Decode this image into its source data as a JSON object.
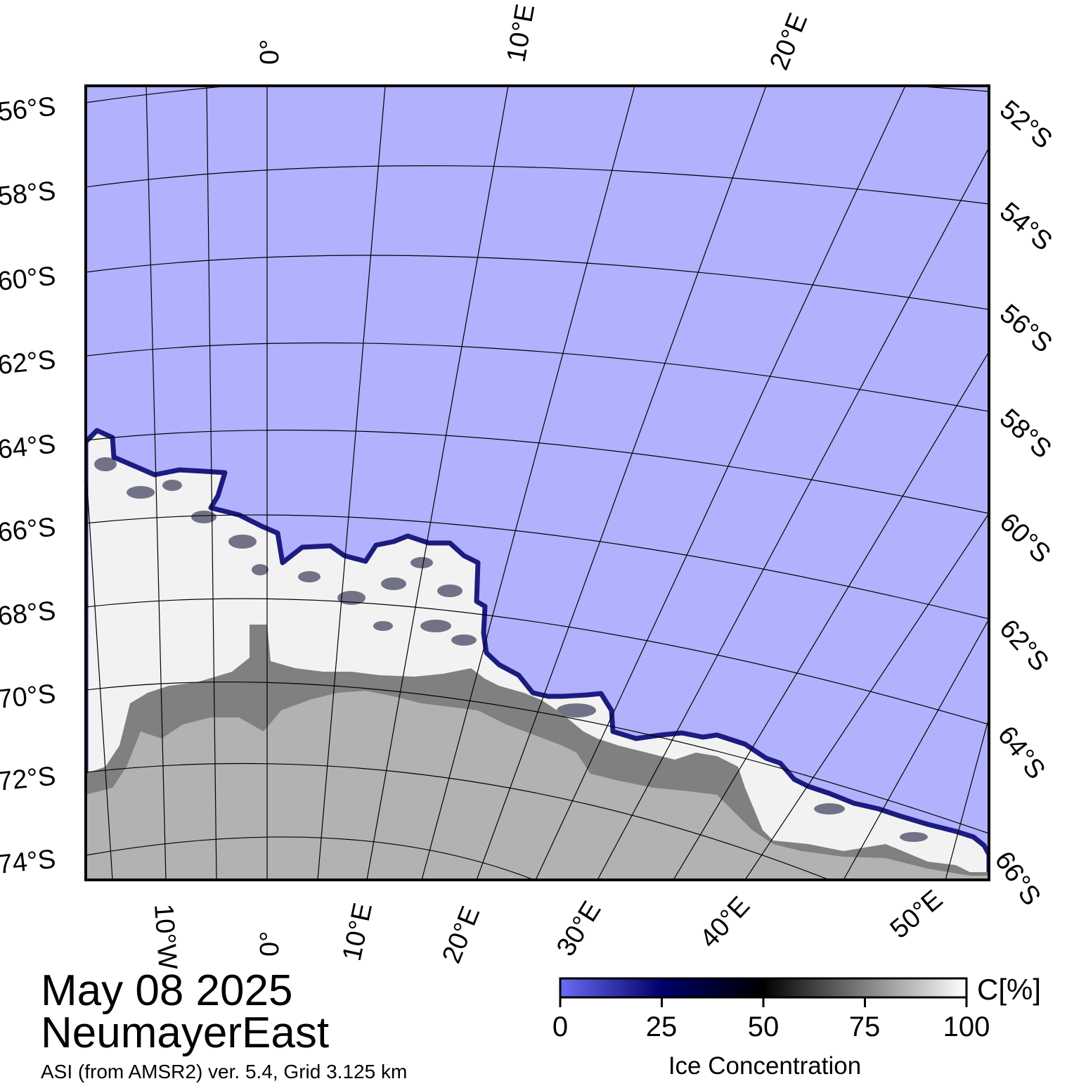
{
  "title": {
    "date": "May 08 2025",
    "region": "NeumayerEast",
    "subtitle": "ASI (from AMSR2) ver. 5.4,  Grid 3.125 km"
  },
  "map": {
    "left_lat_labels": [
      "56°S",
      "58°S",
      "60°S",
      "62°S",
      "64°S",
      "66°S",
      "68°S",
      "70°S",
      "72°S",
      "74°S"
    ],
    "right_lat_labels": [
      "52°S",
      "54°S",
      "56°S",
      "58°S",
      "60°S",
      "62°S",
      "64°S",
      "66°S"
    ],
    "top_lon_labels": [
      "0°",
      "10°E",
      "20°E"
    ],
    "bottom_lon_labels": [
      "10°W",
      "0°",
      "10°E",
      "20°E",
      "30°E",
      "40°E",
      "50°E"
    ],
    "colors": {
      "open_water": "#b1b1fd",
      "land": "#b2b2b2",
      "ice_shelf": "#808080",
      "sea_ice": "#f2f2f2",
      "ice_edge": "#22228a"
    }
  },
  "colorbar": {
    "unit": "C[%]",
    "ticks": [
      "0",
      "25",
      "50",
      "75",
      "100"
    ],
    "label": "Ice Concentration",
    "range": [
      0,
      100
    ],
    "colors": [
      "#6b6bf5",
      "#00006a",
      "#000000",
      "#808080",
      "#ffffff"
    ]
  }
}
